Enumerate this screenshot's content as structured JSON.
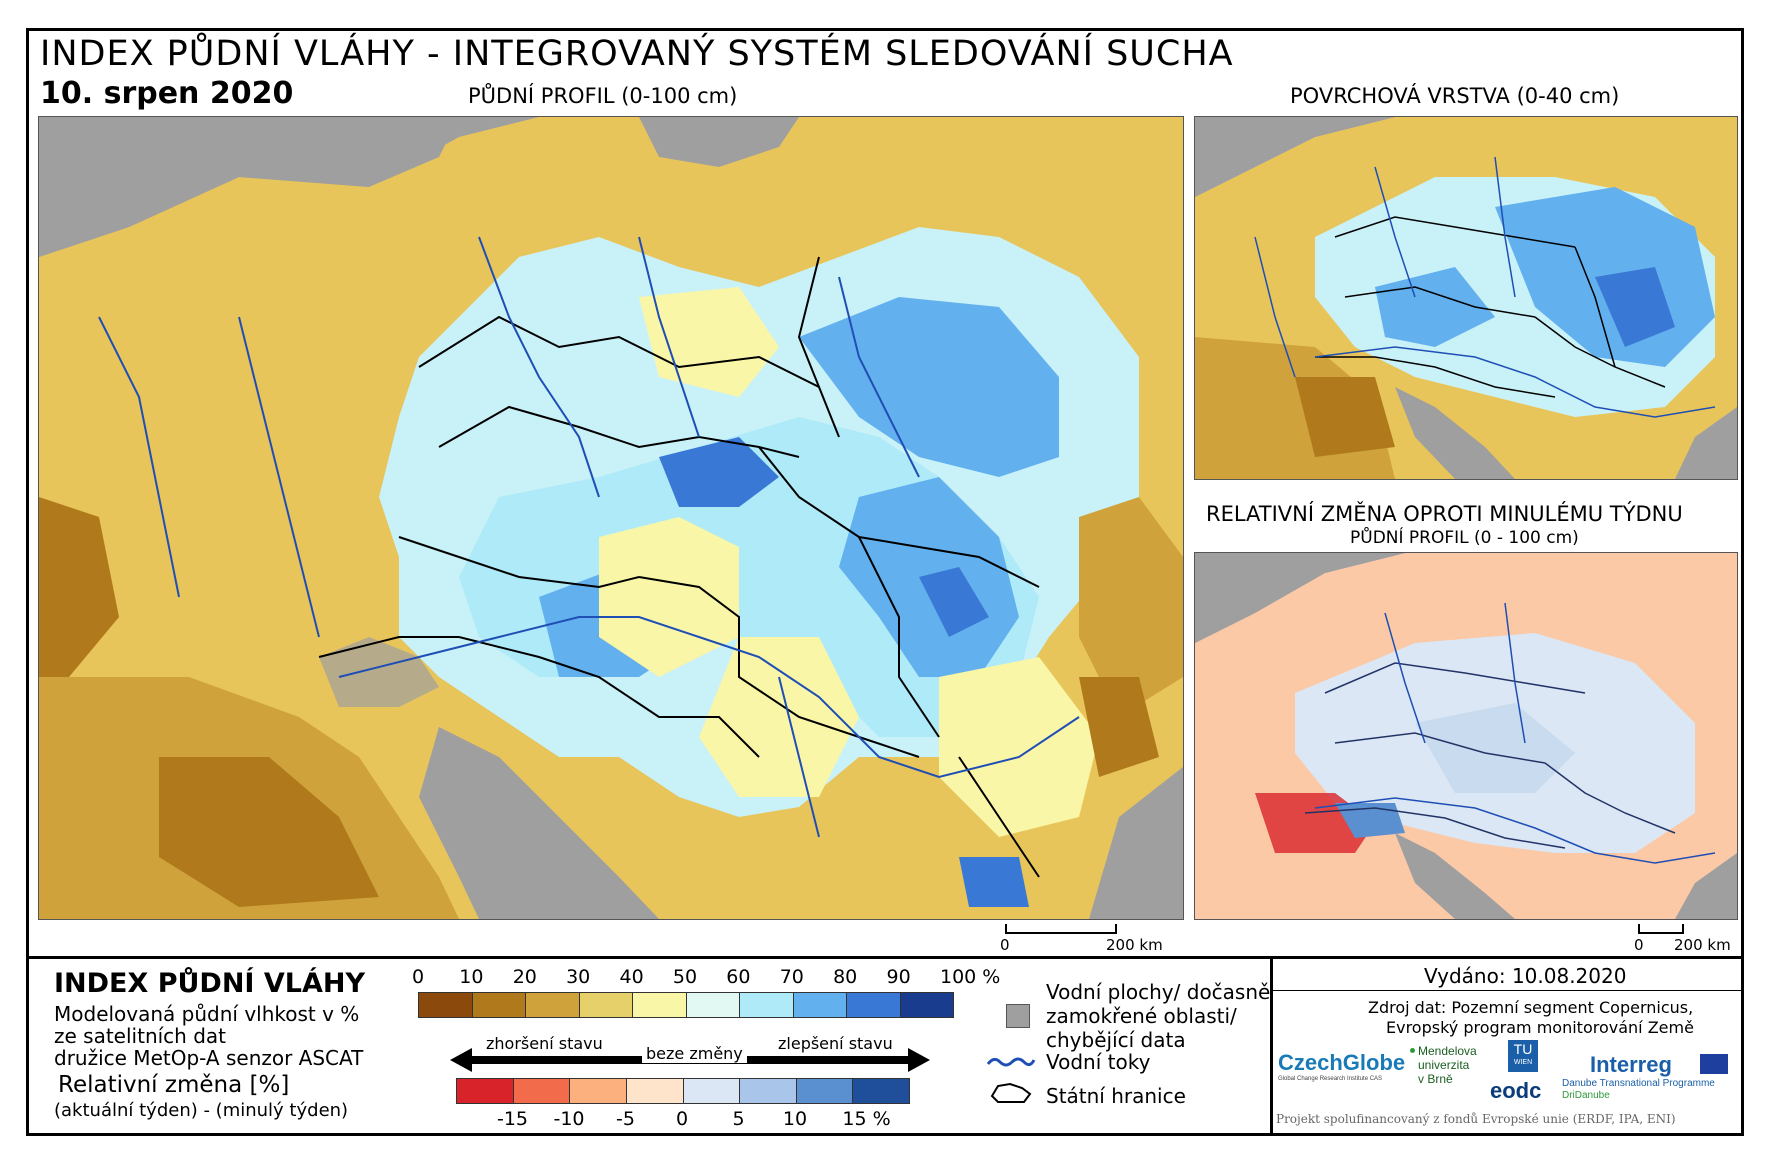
{
  "header": {
    "title": "INDEX PŮDNÍ VLÁHY - INTEGROVANÝ SYSTÉM SLEDOVÁNÍ SUCHA",
    "date": "10. srpen 2020"
  },
  "maps": {
    "main_title": "PŮDNÍ PROFIL (0-100 cm)",
    "surface_title": "POVRCHOVÁ VRSTVA (0-40 cm)",
    "change_title": "RELATIVNÍ ZMĚNA OPROTI MINULÉMU TÝDNU",
    "change_subtitle": "PŮDNÍ PROFIL (0 - 100 cm)",
    "scale_zero": "0",
    "scale_main_label": "200 km",
    "scale_small_zero": "0",
    "scale_small_label": "200 km"
  },
  "legend": {
    "title": "INDEX PŮDNÍ VLÁHY",
    "desc_line1": "Modelovaná půdní vlhkost v %",
    "desc_line2": "ze satelitních dat",
    "desc_line3": "družice MetOp-A senzor ASCAT",
    "rel_title": "Relativní změna [%]",
    "rel_desc": "(aktuální týden) - (minulý týden)",
    "index_ticks": [
      "0",
      "10",
      "20",
      "30",
      "40",
      "50",
      "60",
      "70",
      "80",
      "90",
      "100 %"
    ],
    "index_colors": [
      "#8b4a0c",
      "#b07a1c",
      "#cfa23c",
      "#e6d06a",
      "#faf6a8",
      "#e2f8f2",
      "#aeeaf8",
      "#62b0ee",
      "#3a78d6",
      "#1a3c8e"
    ],
    "change_ticks": [
      "-15",
      "-10",
      "-5",
      "0",
      "5",
      "10",
      "15 %"
    ],
    "change_colors": [
      "#d9232a",
      "#f26b4a",
      "#fbb07e",
      "#fde4cb",
      "#dbe7f4",
      "#a9c6ea",
      "#5a8fd0",
      "#1f4f9a"
    ],
    "arrow_worse": "zhoršení stavu",
    "arrow_none": "beze změny",
    "arrow_better": "zlepšení stavu",
    "water_line1": "Vodní plochy/ dočasně",
    "water_line2": "zamokřené oblasti/",
    "water_line3": "chybějící data",
    "rivers": "Vodní toky",
    "borders": "Státní hranice"
  },
  "footer": {
    "issued": "Vydáno: 10.08.2020",
    "source_line1": "Zdroj dat: Pozemní segment Copernicus,",
    "source_line2": "Evropský program monitorování Země",
    "funding": "Projekt spolufinancovaný z fondů Evropské unie (ERDF, IPA, ENI)",
    "logos": {
      "czechglobe": "CzechGlobe",
      "czechglobe_sub": "Global Change Research Institute CAS",
      "mendel_1": "Mendelova",
      "mendel_2": "univerzita",
      "mendel_3": "v Brně",
      "tu": "TU",
      "tu_sub": "WIEN",
      "eodc": "eodc",
      "interreg": "Interreg",
      "interreg_sub1": "Danube Transnational Programme",
      "interreg_sub2": "DriDanube"
    }
  },
  "colors": {
    "sea": "#9f9f9f",
    "dry_dark": "#8b4a0c",
    "dry": "#cfa23c",
    "neutral": "#faf6a8",
    "wet_light": "#c9f1f8",
    "wet": "#62b0ee",
    "wet_dark": "#3a78d6",
    "river": "#1f4fb4",
    "change_neg": "#fbc9a6",
    "change_pos": "#c8dbef"
  }
}
